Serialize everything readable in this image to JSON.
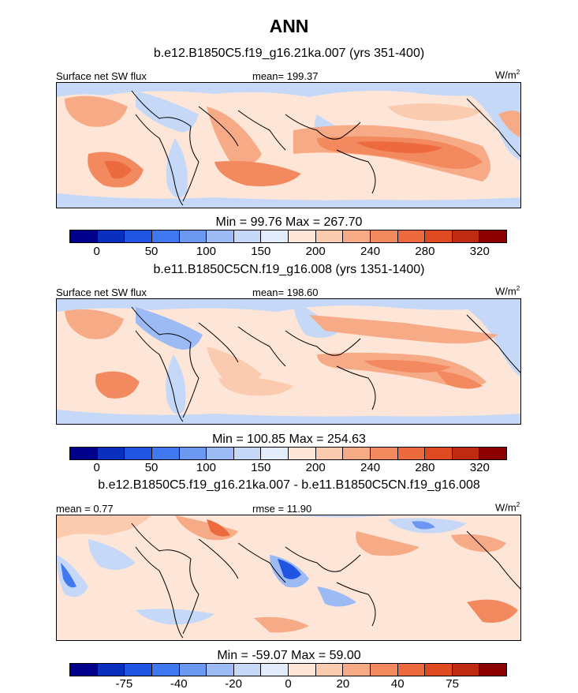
{
  "figure": {
    "title": "ANN"
  },
  "panels": [
    {
      "case_title": "b.e12.B1850C5.f19_g16.21ka.007 (yrs 351-400)",
      "left_label": "Surface net SW flux",
      "center_label": "mean= 199.37",
      "units_base": "W/m",
      "units_exp": "2",
      "min_max": "Min =  99.76 Max = 267.70",
      "colorbar_kind": "abs"
    },
    {
      "case_title": "b.e11.B1850C5CN.f19_g16.008 (yrs 1351-1400)",
      "left_label": "Surface net SW flux",
      "center_label": "mean= 198.60",
      "units_base": "W/m",
      "units_exp": "2",
      "min_max": "Min = 100.85 Max = 254.63",
      "colorbar_kind": "abs"
    },
    {
      "case_title": "b.e12.B1850C5.f19_g16.21ka.007 - b.e11.B1850C5CN.f19_g16.008",
      "left_label": "mean =   0.77",
      "center_label": "rmse =  11.90",
      "units_base": "W/m",
      "units_exp": "2",
      "min_max": "Min = -59.07 Max =  59.00",
      "colorbar_kind": "diff"
    }
  ],
  "colorbars": {
    "abs": {
      "colors": [
        "#00008b",
        "#0a2fbf",
        "#1f55e0",
        "#3f78ef",
        "#6c98f2",
        "#9cbbf5",
        "#c6d8f7",
        "#e2ecfa",
        "#fde6d8",
        "#fbcbb0",
        "#f7aa86",
        "#f3895f",
        "#ec6a3d",
        "#e04a20",
        "#bf2a12",
        "#8b0000"
      ],
      "labels": [
        "0",
        "50",
        "100",
        "150",
        "200",
        "240",
        "280",
        "320"
      ],
      "label_box_index": [
        1,
        3,
        5,
        7,
        9,
        11,
        13,
        15
      ]
    },
    "diff": {
      "colors": [
        "#00008b",
        "#0a2fbf",
        "#1f55e0",
        "#3f78ef",
        "#6c98f2",
        "#9cbbf5",
        "#c6d8f7",
        "#e2ecfa",
        "#fde6d8",
        "#fbcbb0",
        "#f7aa86",
        "#f3895f",
        "#ec6a3d",
        "#e04a20",
        "#bf2a12",
        "#8b0000"
      ],
      "labels": [
        "-75",
        "-40",
        "-20",
        "0",
        "20",
        "40",
        "75"
      ],
      "label_box_index": [
        2,
        4,
        6,
        8,
        10,
        12,
        14
      ]
    }
  }
}
